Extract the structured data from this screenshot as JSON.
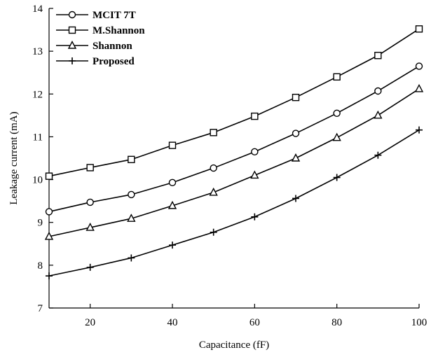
{
  "chart_data": {
    "type": "line",
    "xlabel": "Capacitance (fF)",
    "ylabel": "Leakage current (mA)",
    "xlim": [
      10,
      100
    ],
    "ylim": [
      7,
      14
    ],
    "xticks": [
      20,
      40,
      60,
      80,
      100
    ],
    "yticks": [
      7,
      8,
      9,
      10,
      11,
      12,
      13,
      14
    ],
    "grid": false,
    "legend_position": "top-left",
    "x": [
      10,
      20,
      30,
      40,
      50,
      60,
      70,
      80,
      90,
      100
    ],
    "series": [
      {
        "name": "MCIT 7T",
        "marker": "circle",
        "values": [
          9.25,
          9.47,
          9.65,
          9.93,
          10.27,
          10.65,
          11.08,
          11.55,
          12.07,
          12.65
        ]
      },
      {
        "name": "M.Shannon",
        "marker": "square",
        "values": [
          10.08,
          10.28,
          10.47,
          10.8,
          11.1,
          11.48,
          11.92,
          12.4,
          12.9,
          13.52
        ]
      },
      {
        "name": "Shannon",
        "marker": "triangle",
        "values": [
          8.67,
          8.88,
          9.09,
          9.39,
          9.7,
          10.1,
          10.5,
          10.98,
          11.5,
          12.12
        ]
      },
      {
        "name": "Proposed",
        "marker": "plus",
        "values": [
          7.75,
          7.95,
          8.17,
          8.47,
          8.77,
          9.13,
          9.56,
          10.05,
          10.57,
          11.16
        ]
      }
    ]
  }
}
